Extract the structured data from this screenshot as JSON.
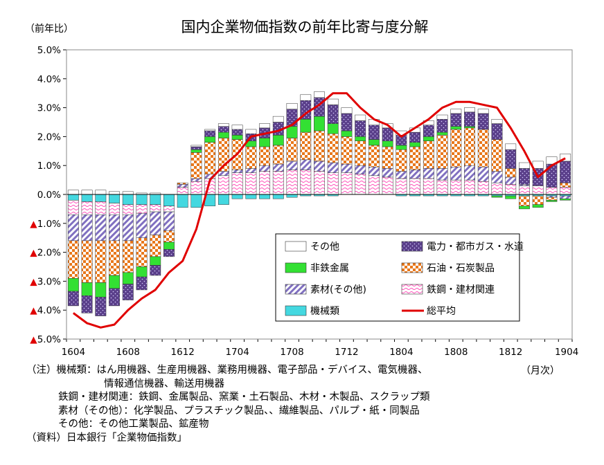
{
  "chart_data": {
    "type": "bar",
    "title": "国内企業物価指数の前年比寄与度分解",
    "ylabel": "（前年比）",
    "xlabel": "（月次）",
    "ylim": [
      -5.0,
      5.0
    ],
    "yticks": [
      "5.0%",
      "4.0%",
      "3.0%",
      "2.0%",
      "1.0%",
      "0.0%",
      "▲1.0%",
      "▲2.0%",
      "▲3.0%",
      "▲4.0%",
      "▲5.0%"
    ],
    "ytick_values": [
      5,
      4,
      3,
      2,
      1,
      0,
      -1,
      -2,
      -3,
      -4,
      -5
    ],
    "xtick_labels": [
      "1604",
      "1608",
      "1612",
      "1704",
      "1708",
      "1712",
      "1804",
      "1808",
      "1812",
      "1904"
    ],
    "xtick_index": [
      0,
      4,
      8,
      12,
      16,
      20,
      24,
      28,
      32,
      36
    ],
    "categories": [
      "1604",
      "1605",
      "1606",
      "1607",
      "1608",
      "1609",
      "1610",
      "1611",
      "1612",
      "1701",
      "1702",
      "1703",
      "1704",
      "1705",
      "1706",
      "1707",
      "1708",
      "1709",
      "1710",
      "1711",
      "1712",
      "1801",
      "1802",
      "1803",
      "1804",
      "1805",
      "1806",
      "1807",
      "1808",
      "1809",
      "1810",
      "1811",
      "1812",
      "1901",
      "1902",
      "1903",
      "1904"
    ],
    "legend_position": "bottom-right",
    "grid": false,
    "series": [
      {
        "name": "機械類",
        "color": "#44d8e0",
        "values": [
          -0.2,
          -0.25,
          -0.25,
          -0.3,
          -0.35,
          -0.35,
          -0.35,
          -0.4,
          -0.45,
          -0.45,
          -0.4,
          -0.35,
          -0.15,
          -0.15,
          -0.15,
          -0.15,
          -0.1,
          -0.05,
          -0.05,
          -0.05,
          0,
          0,
          0,
          0,
          -0.05,
          -0.05,
          -0.05,
          -0.05,
          -0.05,
          -0.05,
          -0.05,
          -0.05,
          -0.05,
          -0.05,
          -0.05,
          -0.05,
          -0.05
        ]
      },
      {
        "name": "鉄鋼・建材関連",
        "color": "#ff9ad6",
        "values": [
          -0.5,
          -0.45,
          -0.45,
          -0.4,
          -0.35,
          -0.3,
          -0.25,
          -0.2,
          0.25,
          0.45,
          0.55,
          0.65,
          0.75,
          0.75,
          0.8,
          0.8,
          0.85,
          0.85,
          0.8,
          0.75,
          0.75,
          0.7,
          0.65,
          0.6,
          0.55,
          0.55,
          0.55,
          0.5,
          0.5,
          0.5,
          0.45,
          0.4,
          0.35,
          0.3,
          0.3,
          0.25,
          0.25
        ]
      },
      {
        "name": "素材(その他)",
        "color": "#8070c0",
        "values": [
          -0.9,
          -0.9,
          -0.9,
          -0.9,
          -0.9,
          -0.85,
          -0.8,
          -0.65,
          0.1,
          0.1,
          0.15,
          0.15,
          0.1,
          0.15,
          0.2,
          0.25,
          0.3,
          0.35,
          0.35,
          0.35,
          0.3,
          0.3,
          0.3,
          0.3,
          0.25,
          0.3,
          0.35,
          0.4,
          0.45,
          0.5,
          0.5,
          0.4,
          0.25,
          0.05,
          0,
          -0.05,
          -0.1
        ]
      },
      {
        "name": "石油・石炭製品",
        "color": "#e8781c",
        "values": [
          -1.3,
          -1.45,
          -1.45,
          -1.2,
          -1.1,
          -1.0,
          -0.75,
          -0.4,
          0.05,
          0.9,
          1.1,
          1.15,
          1.05,
          0.75,
          0.65,
          0.65,
          0.8,
          0.95,
          1.05,
          1.0,
          0.95,
          0.85,
          0.75,
          0.75,
          0.75,
          0.8,
          0.95,
          1.15,
          1.3,
          1.3,
          1.3,
          1.1,
          0.3,
          -0.35,
          -0.3,
          -0.1,
          0.15
        ]
      },
      {
        "name": "非鉄金属",
        "color": "#33e033",
        "values": [
          -0.45,
          -0.45,
          -0.5,
          -0.45,
          -0.4,
          -0.35,
          -0.3,
          -0.25,
          0,
          0.1,
          0.2,
          0.2,
          0.15,
          0.2,
          0.3,
          0.35,
          0.4,
          0.45,
          0.5,
          0.35,
          0.2,
          0.15,
          0.2,
          0.2,
          0.15,
          0.15,
          0.15,
          0.1,
          0.1,
          0.05,
          0,
          -0.05,
          -0.1,
          -0.1,
          -0.1,
          -0.05,
          -0.05
        ]
      },
      {
        "name": "電力・都市ガス・水道",
        "color": "#5a3f8a",
        "values": [
          -0.5,
          -0.6,
          -0.65,
          -0.6,
          -0.55,
          -0.45,
          -0.35,
          -0.25,
          0,
          0.1,
          0.2,
          0.2,
          0.2,
          0.25,
          0.35,
          0.45,
          0.6,
          0.65,
          0.65,
          0.65,
          0.6,
          0.55,
          0.5,
          0.45,
          0.35,
          0.35,
          0.4,
          0.45,
          0.45,
          0.5,
          0.55,
          0.55,
          0.65,
          0.55,
          0.6,
          0.8,
          0.75
        ]
      },
      {
        "name": "その他",
        "color": "#ffffff",
        "values": [
          0.15,
          0.15,
          0.15,
          0.1,
          0.1,
          0.05,
          0.05,
          0.0,
          0.0,
          0.05,
          0.05,
          0.1,
          0.15,
          0.15,
          0.15,
          0.2,
          0.2,
          0.2,
          0.2,
          0.2,
          0.2,
          0.2,
          0.2,
          0.15,
          0.15,
          0.15,
          0.15,
          0.15,
          0.15,
          0.15,
          0.15,
          0.15,
          0.2,
          0.2,
          0.25,
          0.25,
          0.25
        ]
      }
    ],
    "line": {
      "name": "総平均",
      "color": "#e00000",
      "values": [
        -4.1,
        -4.45,
        -4.6,
        -4.5,
        -4.0,
        -3.6,
        -3.3,
        -2.7,
        -2.3,
        -1.2,
        0.5,
        1.0,
        1.4,
        2.0,
        2.1,
        2.2,
        2.4,
        2.8,
        3.1,
        3.5,
        3.5,
        3.0,
        2.6,
        2.4,
        2.0,
        2.3,
        2.6,
        3.0,
        3.2,
        3.2,
        3.1,
        3.0,
        2.3,
        1.5,
        0.6,
        1.0,
        1.25
      ]
    }
  },
  "notes": {
    "line1": "（注）機械類：はん用機器、生産用機器、業務用機器、電子部品・デバイス、電気機器、",
    "line1b": "情報通信機器、輸送用機器",
    "line2": "鉄鋼・建材関連：鉄鋼、金属製品、窯業・土石製品、木材・木製品、スクラップ類",
    "line3": "素材（その他）：化学製品、プラスチック製品、、繊維製品、パルプ・紙・同製品",
    "line4": "その他：その他工業製品、鉱産物",
    "line5": "（資料）日本銀行「企業物価指数」"
  }
}
